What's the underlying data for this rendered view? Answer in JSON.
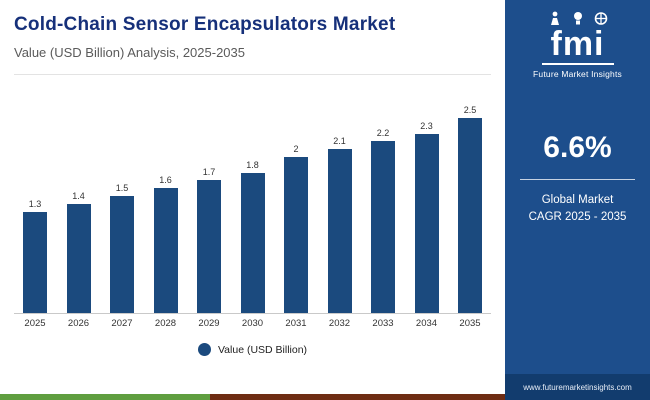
{
  "header": {
    "title": "Cold-Chain Sensor Encapsulators Market",
    "subtitle": "Value (USD Billion) Analysis, 2025-2035"
  },
  "chart_data": {
    "type": "bar",
    "categories": [
      "2025",
      "2026",
      "2027",
      "2028",
      "2029",
      "2030",
      "2031",
      "2032",
      "2033",
      "2034",
      "2035"
    ],
    "values": [
      1.3,
      1.4,
      1.5,
      1.6,
      1.7,
      1.8,
      2,
      2.1,
      2.2,
      2.3,
      2.5
    ],
    "title": "Cold-Chain Sensor Encapsulators Market",
    "xlabel": "",
    "ylabel": "Value (USD Billion)",
    "ylim": [
      0,
      2.75
    ],
    "grid": false,
    "legend": "Value (USD Billion)",
    "legend_position": "bottom"
  },
  "sidebar": {
    "logo_text": "fmi",
    "logo_caption": "Future Market Insights",
    "cagr_value": "6.6%",
    "cagr_line1": "Global Market",
    "cagr_line2": "CAGR 2025 - 2035",
    "website": "www.futuremarketinsights.com"
  },
  "colors": {
    "bar": "#1b4a7e",
    "panel": "#1d4e8c",
    "panel-dark": "#123c6e",
    "title": "#16307a",
    "green": "#5f9e3f",
    "maroon": "#6e2c13"
  }
}
